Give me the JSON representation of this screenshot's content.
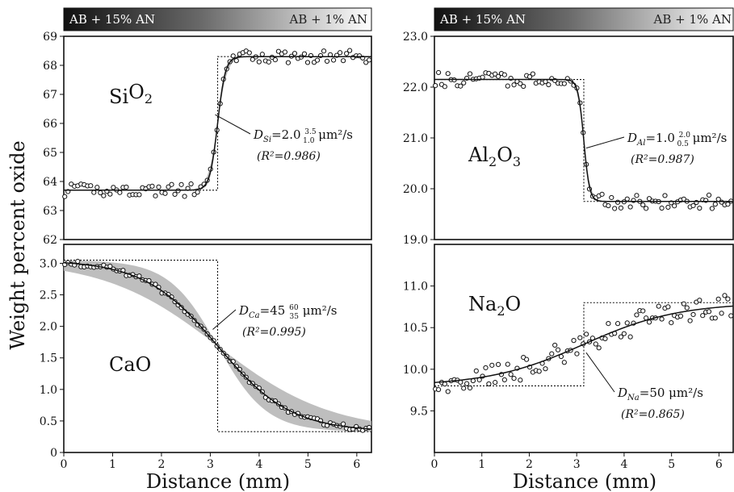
{
  "figure": {
    "y_axis_label": "Weight percent oxide",
    "x_axis_label": "Distance (mm)",
    "gradient_bar": {
      "left_label": "AB + 15% AN",
      "right_label": "AB + 1% AN"
    },
    "colors": {
      "points": "#111111",
      "fit_line": "#111111",
      "uncertainty_band": "#b3b3b3",
      "step_line": "#111111",
      "bar_dark": "#111111",
      "bar_light": "#ffffff"
    }
  },
  "chart_data": [
    {
      "id": "sio2",
      "type": "scatter",
      "oxide_label": "SiO2",
      "xlim": [
        0,
        6.3
      ],
      "ylim": [
        62,
        69
      ],
      "x_ticks": [],
      "y_ticks": [
        "62",
        "63",
        "64",
        "65",
        "66",
        "67",
        "68",
        "69"
      ],
      "fit": {
        "low": 63.7,
        "high": 68.3,
        "center": 3.15,
        "width": 0.08,
        "direction": "up"
      },
      "band_halfwidth": 0.25,
      "step": {
        "x": 3.15,
        "low": 63.7,
        "high": 68.3,
        "xmin": 0,
        "xmax": 6.3
      },
      "scatter": {
        "noise": 0.22
      },
      "annotation": {
        "D_label": "D",
        "D_sub": "Si",
        "value": "=2.0",
        "sup": "3.5",
        "sub": "1.0",
        "unit": " μm²/s",
        "r2": "(R²=0.986)",
        "pointer": [
          3.1,
          66.3
        ]
      }
    },
    {
      "id": "al2o3",
      "type": "scatter",
      "oxide_label": "Al2O3",
      "xlim": [
        0,
        6.3
      ],
      "ylim": [
        19,
        23
      ],
      "x_ticks": [],
      "y_ticks": [
        "19.0",
        "20.0",
        "21.0",
        "22.0",
        "23.0"
      ],
      "fit": {
        "low": 19.75,
        "high": 22.15,
        "center": 3.15,
        "width": 0.06,
        "direction": "down"
      },
      "band_halfwidth": 0.2,
      "step": {
        "x": 3.15,
        "low": 19.75,
        "high": 22.15,
        "xmin": 0,
        "xmax": 6.3
      },
      "scatter": {
        "noise": 0.14
      },
      "annotation": {
        "D_label": "D",
        "D_sub": "Al",
        "value": "=1.0",
        "sup": "2.0",
        "sub": "0.5",
        "unit": " μm²/s",
        "r2": "(R²=0.987)",
        "pointer": [
          3.2,
          20.8
        ]
      }
    },
    {
      "id": "cao",
      "type": "scatter",
      "oxide_label": "CaO",
      "xlim": [
        0,
        6.3
      ],
      "ylim": [
        0,
        3.3
      ],
      "x_ticks": [
        "0",
        "1",
        "2",
        "3",
        "4",
        "5",
        "6"
      ],
      "y_ticks": [
        "0",
        "0.5",
        "1.0",
        "1.5",
        "2.0",
        "2.5",
        "3.0"
      ],
      "fit": {
        "low": 0.33,
        "high": 3.05,
        "center": 3.15,
        "width": 0.75,
        "direction": "down"
      },
      "band_halfwidth": 0.55,
      "step": {
        "x": 3.15,
        "low": 0.33,
        "high": 3.05,
        "xmin": 0,
        "xmax": 6.3
      },
      "scatter": {
        "noise": 0.04
      },
      "annotation": {
        "D_label": "D",
        "D_sub": "Ca",
        "value": "=45",
        "sup": "60",
        "sub": "35",
        "unit": " μm²/s",
        "r2": "(R²=0.995)",
        "pointer": [
          3.05,
          1.95
        ]
      }
    },
    {
      "id": "na2o",
      "type": "scatter",
      "oxide_label": "Na2O",
      "xlim": [
        0,
        6.3
      ],
      "ylim": [
        9.0,
        11.5
      ],
      "x_ticks": [
        "0",
        "1",
        "2",
        "3",
        "4",
        "5",
        "6"
      ],
      "y_ticks": [
        "9.5",
        "10.0",
        "10.5",
        "11.0"
      ],
      "fit": {
        "low": 9.8,
        "high": 10.8,
        "center": 3.15,
        "width": 1.0,
        "direction": "up"
      },
      "band_halfwidth": 0,
      "step": {
        "x": 3.15,
        "low": 9.8,
        "high": 10.8,
        "xmin": 0,
        "xmax": 6.3
      },
      "scatter": {
        "noise": 0.14
      },
      "annotation": {
        "D_label": "D",
        "D_sub": "Na",
        "value": "=50",
        "sup": "",
        "sub": "",
        "unit": " μm²/s",
        "r2": "(R²=0.865)",
        "pointer": [
          3.2,
          10.2
        ]
      }
    }
  ]
}
